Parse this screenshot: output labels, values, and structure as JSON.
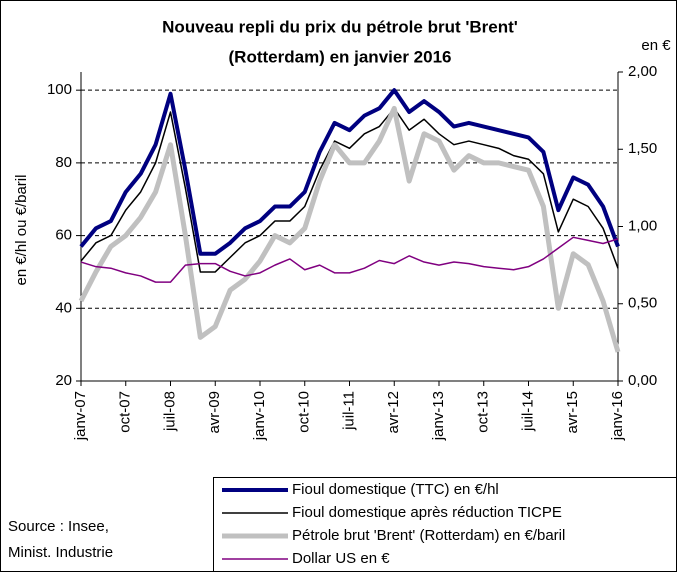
{
  "chart_data": {
    "type": "line",
    "title": [
      "Nouveau repli du prix du pétrole brut 'Brent'",
      "(Rotterdam) en janvier 2016"
    ],
    "y_label": "en €/hl ou €/baril",
    "y2_label": "en €",
    "source": [
      "Source : Insee,",
      "Minist. Industrie"
    ],
    "categories": [
      "janv-07",
      null,
      null,
      "oct-07",
      null,
      null,
      "juil-08",
      null,
      null,
      "avr-09",
      null,
      null,
      "janv-10",
      null,
      null,
      "oct-10",
      null,
      null,
      "juil-11",
      null,
      null,
      "avr-12",
      null,
      null,
      "janv-13",
      null,
      null,
      "oct-13",
      null,
      null,
      "juil-14",
      null,
      null,
      "avr-15",
      null,
      null,
      "janv-16"
    ],
    "ylim": [
      20,
      105
    ],
    "yticks": [
      20,
      40,
      60,
      80,
      100
    ],
    "y2lim": [
      0,
      2
    ],
    "y2ticks": [
      {
        "value": 0,
        "label": "0,00"
      },
      {
        "value": 0.5,
        "label": "0,50"
      },
      {
        "value": 1,
        "label": "1,00"
      },
      {
        "value": 1.5,
        "label": "1,50"
      },
      {
        "value": 2,
        "label": "2,00"
      }
    ],
    "grid": true,
    "series": [
      {
        "name": "Fioul domestique (TTC) en €/hl",
        "color": "#000080",
        "width": 4,
        "values": [
          57,
          62,
          64,
          72,
          77,
          85,
          99,
          78,
          55,
          55,
          58,
          62,
          64,
          68,
          68,
          72,
          83,
          91,
          89,
          93,
          95,
          100,
          94,
          97,
          94,
          90,
          91,
          90,
          89,
          88,
          87,
          83,
          67,
          76,
          74,
          68,
          57
        ]
      },
      {
        "name": "Fioul domestique après réduction TICPE",
        "color": "#000000",
        "width": 1.5,
        "values": [
          53,
          58,
          60,
          67,
          72,
          80,
          94,
          73,
          50,
          50,
          54,
          58,
          60,
          64,
          64,
          68,
          78,
          86,
          84,
          88,
          90,
          95,
          89,
          92,
          88,
          85,
          86,
          85,
          84,
          82,
          81,
          77,
          61,
          70,
          68,
          62,
          51
        ]
      },
      {
        "name": "Pétrole brut 'Brent' (Rotterdam) en €/baril",
        "color": "#c0c0c0",
        "width": 5,
        "values": [
          42,
          50,
          57,
          60,
          65,
          72,
          85,
          60,
          32,
          35,
          45,
          48,
          53,
          60,
          58,
          62,
          75,
          85,
          80,
          80,
          86,
          95,
          75,
          88,
          86,
          78,
          82,
          80,
          80,
          79,
          78,
          68,
          40,
          55,
          52,
          42,
          28
        ]
      },
      {
        "name": "Dollar US en €",
        "color": "#800080",
        "width": 1.5,
        "axis": "y2",
        "values": [
          0.77,
          0.74,
          0.73,
          0.7,
          0.68,
          0.64,
          0.64,
          0.75,
          0.76,
          0.76,
          0.71,
          0.68,
          0.7,
          0.75,
          0.79,
          0.72,
          0.75,
          0.7,
          0.7,
          0.73,
          0.78,
          0.76,
          0.81,
          0.77,
          0.75,
          0.77,
          0.76,
          0.74,
          0.73,
          0.72,
          0.74,
          0.79,
          0.86,
          0.93,
          0.91,
          0.89,
          0.92
        ]
      }
    ]
  }
}
